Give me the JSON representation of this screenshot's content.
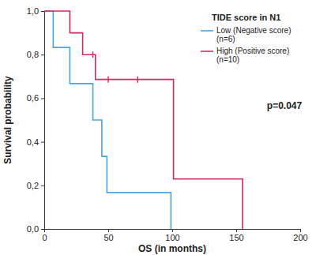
{
  "chart_data": {
    "type": "survival",
    "x_label": "OS (in months)",
    "y_label": "Survival probability",
    "legend_title": "TIDE score in N1",
    "legend": "upper right",
    "annotations": [
      {
        "text": "p=0.047"
      }
    ],
    "xlim": [
      0,
      200
    ],
    "xticks": [
      0,
      50,
      100,
      150,
      200
    ],
    "ylim": [
      0,
      1
    ],
    "yticks": [
      {
        "value": 0,
        "label": "0,0"
      },
      {
        "value": 0.2,
        "label": "0,2"
      },
      {
        "value": 0.4,
        "label": "0,4"
      },
      {
        "value": 0.6,
        "label": "0,6"
      },
      {
        "value": 0.8,
        "label": "0,8"
      },
      {
        "value": 1,
        "label": "1,0"
      }
    ],
    "series": [
      {
        "name": "Low (Negative score)",
        "n_label": "(n=6)",
        "color": "#4aa3df",
        "x": [
          0,
          7,
          20,
          38,
          45,
          49,
          99
        ],
        "values": [
          1,
          0.833,
          0.667,
          0.5,
          0.333,
          0.167,
          0
        ],
        "censor_x": [],
        "censor_values": []
      },
      {
        "name": "High (Positive score)",
        "n_label": "(n=10)",
        "color": "#d22a5e",
        "x": [
          0,
          20,
          30,
          40,
          101,
          155
        ],
        "values": [
          1,
          0.9,
          0.8,
          0.686,
          0.229,
          0
        ],
        "censor_x": [
          38,
          50,
          73
        ],
        "censor_values": [
          0.8,
          0.686,
          0.686
        ]
      }
    ]
  }
}
